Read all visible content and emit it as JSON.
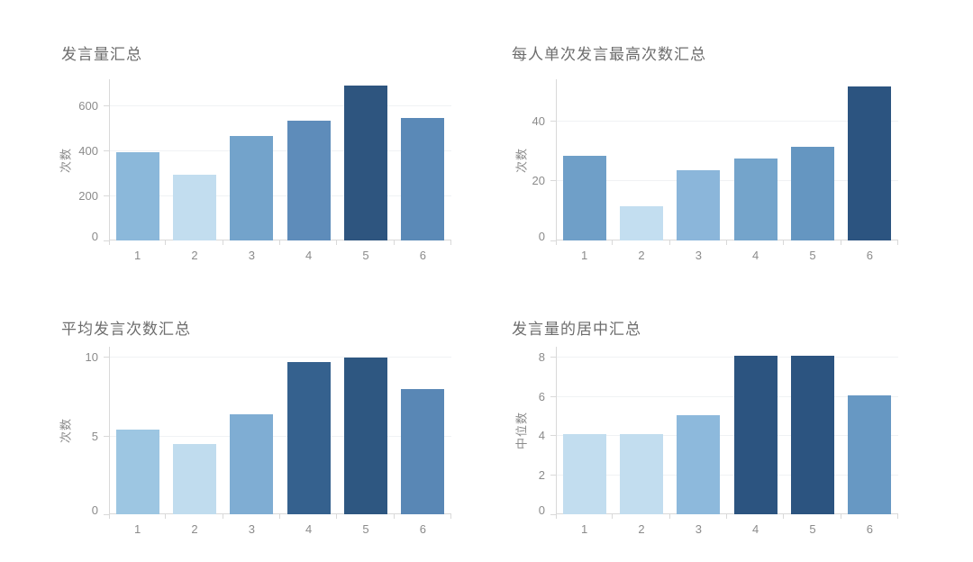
{
  "page": {
    "background": "#ffffff",
    "styles": {
      "title_color": "#6d6d6d",
      "tick_label_color": "#8b8b8b",
      "axis_line_color": "#d9d9d9",
      "gridline_color": "#f0f2f4"
    }
  },
  "chart_data": [
    {
      "type": "bar",
      "title": "发言量汇总",
      "ylabel": "次数",
      "xlabel": "",
      "categories": [
        "1",
        "2",
        "3",
        "4",
        "5",
        "6"
      ],
      "values": [
        390,
        290,
        460,
        530,
        685,
        540
      ],
      "bar_colors": [
        "#8bb8da",
        "#c2ddef",
        "#73a3cb",
        "#5e8cba",
        "#2e557f",
        "#5a89b7"
      ],
      "yticks": [
        0,
        200,
        400,
        600
      ],
      "ylim": [
        0,
        716
      ],
      "grid": true,
      "legend": "none"
    },
    {
      "type": "bar",
      "title": "每人单次发言最高次数汇总",
      "ylabel": "次数",
      "xlabel": "",
      "categories": [
        "1",
        "2",
        "3",
        "4",
        "5",
        "6"
      ],
      "values": [
        28,
        11,
        23,
        27,
        31,
        51
      ],
      "bar_colors": [
        "#6f9fc8",
        "#c3def0",
        "#8bb6da",
        "#74a4cb",
        "#6596c1",
        "#2c5480"
      ],
      "yticks": [
        0,
        20,
        40
      ],
      "ylim": [
        0,
        53.8
      ],
      "grid": true,
      "legend": "none"
    },
    {
      "type": "bar",
      "title": "平均发言次数汇总",
      "ylabel": "次数",
      "xlabel": "",
      "categories": [
        "1",
        "2",
        "3",
        "4",
        "5",
        "6"
      ],
      "values": [
        5.3,
        4.4,
        6.3,
        9.6,
        9.9,
        7.9
      ],
      "bar_colors": [
        "#9dc6e2",
        "#c0dcee",
        "#7fadd3",
        "#35618e",
        "#2e5781",
        "#5987b5"
      ],
      "yticks": [
        0,
        5,
        10
      ],
      "ylim": [
        0,
        10.63
      ],
      "grid": true,
      "legend": "none"
    },
    {
      "type": "bar",
      "title": "发言量的居中汇总",
      "ylabel": "中位数",
      "xlabel": "",
      "categories": [
        "1",
        "2",
        "3",
        "4",
        "5",
        "6"
      ],
      "values": [
        4,
        4,
        5,
        8,
        8,
        6
      ],
      "bar_colors": [
        "#c2ddef",
        "#c2ddef",
        "#8db9dc",
        "#2c5480",
        "#2c5480",
        "#6798c3"
      ],
      "yticks": [
        0,
        2,
        4,
        6,
        8
      ],
      "ylim": [
        0,
        8.5
      ],
      "grid": true,
      "legend": "none"
    }
  ]
}
